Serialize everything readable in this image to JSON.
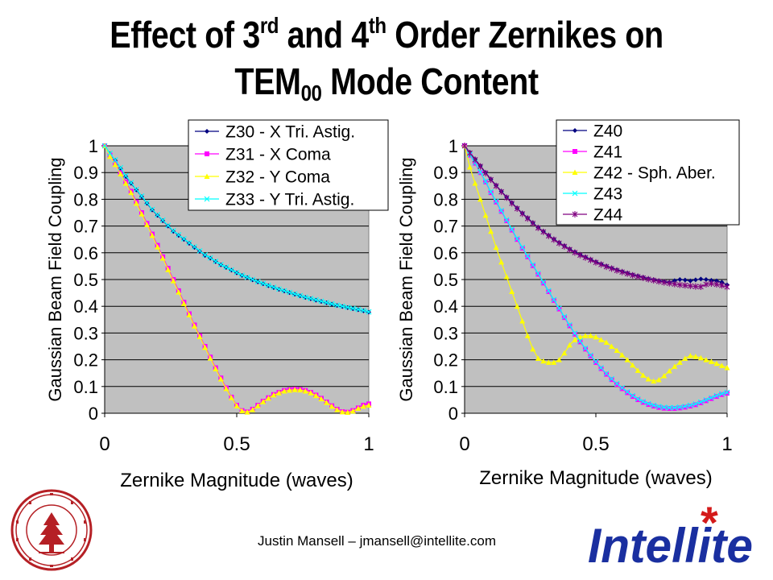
{
  "slide": {
    "title_part1": "Effect of 3",
    "title_sup1": "rd",
    "title_part2": " and 4",
    "title_sup2": "th",
    "title_part3": " Order Zernikes on",
    "title_line2_main": "TEM",
    "title_line2_sub": "00",
    "title_line2_rest": " Mode Content",
    "footer": "Justin Mansell – jmansell@intellite.com",
    "seal_lettering": "LELAND STANFORD JUNIOR UNIVERSITY · ORGANIZED 1891",
    "logo_text": "Intellite",
    "logo_star": "*"
  },
  "colors": {
    "plot_bg": "#c0c0c0",
    "logo_blue": "#1a2fa0",
    "logo_star": "#d41a1a",
    "seal_red": "#b52025"
  },
  "chart_data": [
    {
      "type": "line",
      "xlabel": "Zernike Magnitude (waves)",
      "ylabel": "Gaussian Beam Field Coupling",
      "xlim": [
        0,
        1
      ],
      "ylim": [
        0,
        1
      ],
      "xticks": [
        "0",
        "0.5",
        "1"
      ],
      "yticks": [
        "0",
        "0.1",
        "0.2",
        "0.3",
        "0.4",
        "0.5",
        "0.6",
        "0.7",
        "0.8",
        "0.9",
        "1"
      ],
      "grid": true,
      "legend_position": "top-right",
      "x": [
        0,
        0.02,
        0.04,
        0.06,
        0.08,
        0.1,
        0.12,
        0.14,
        0.16,
        0.18,
        0.2,
        0.22,
        0.24,
        0.26,
        0.28,
        0.3,
        0.32,
        0.34,
        0.36,
        0.38,
        0.4,
        0.42,
        0.44,
        0.46,
        0.48,
        0.5,
        0.52,
        0.54,
        0.56,
        0.58,
        0.6,
        0.62,
        0.64,
        0.66,
        0.68,
        0.7,
        0.72,
        0.74,
        0.76,
        0.78,
        0.8,
        0.82,
        0.84,
        0.86,
        0.88,
        0.9,
        0.92,
        0.94,
        0.96,
        0.98,
        1.0
      ],
      "series": [
        {
          "name": "Z30 - X Tri. Astig.",
          "color": "#000080",
          "marker": "diamond",
          "values": [
            1.0,
            0.97,
            0.945,
            0.915,
            0.885,
            0.86,
            0.835,
            0.81,
            0.785,
            0.76,
            0.74,
            0.72,
            0.7,
            0.68,
            0.665,
            0.65,
            0.635,
            0.62,
            0.605,
            0.59,
            0.58,
            0.567,
            0.555,
            0.545,
            0.535,
            0.525,
            0.515,
            0.507,
            0.499,
            0.491,
            0.484,
            0.477,
            0.47,
            0.463,
            0.457,
            0.451,
            0.445,
            0.439,
            0.433,
            0.428,
            0.423,
            0.418,
            0.413,
            0.408,
            0.403,
            0.399,
            0.395,
            0.391,
            0.387,
            0.383,
            0.378
          ]
        },
        {
          "name": "Z31 - X Coma",
          "color": "#ff00ff",
          "marker": "square",
          "values": [
            1.0,
            0.965,
            0.935,
            0.9,
            0.865,
            0.83,
            0.79,
            0.75,
            0.71,
            0.67,
            0.628,
            0.585,
            0.542,
            0.5,
            0.458,
            0.415,
            0.372,
            0.33,
            0.29,
            0.25,
            0.21,
            0.17,
            0.132,
            0.095,
            0.06,
            0.03,
            0.01,
            0.005,
            0.015,
            0.03,
            0.045,
            0.058,
            0.07,
            0.078,
            0.085,
            0.088,
            0.09,
            0.089,
            0.085,
            0.078,
            0.068,
            0.056,
            0.042,
            0.028,
            0.015,
            0.006,
            0.004,
            0.01,
            0.02,
            0.03,
            0.035
          ]
        },
        {
          "name": "Z32 - Y Coma",
          "color": "#ffff00",
          "marker": "triangle",
          "values": [
            1.0,
            0.96,
            0.93,
            0.895,
            0.86,
            0.825,
            0.785,
            0.745,
            0.705,
            0.665,
            0.622,
            0.58,
            0.537,
            0.495,
            0.453,
            0.41,
            0.368,
            0.326,
            0.286,
            0.246,
            0.206,
            0.166,
            0.128,
            0.092,
            0.058,
            0.028,
            0.009,
            0.004,
            0.013,
            0.028,
            0.043,
            0.056,
            0.068,
            0.076,
            0.083,
            0.086,
            0.088,
            0.087,
            0.083,
            0.076,
            0.066,
            0.054,
            0.04,
            0.026,
            0.013,
            0.005,
            0.003,
            0.008,
            0.018,
            0.026,
            0.03
          ]
        },
        {
          "name": "Z33 - Y Tri. Astig.",
          "color": "#00ffff",
          "marker": "x",
          "values": [
            1.0,
            0.972,
            0.947,
            0.918,
            0.888,
            0.862,
            0.837,
            0.812,
            0.787,
            0.762,
            0.742,
            0.722,
            0.702,
            0.682,
            0.667,
            0.652,
            0.637,
            0.622,
            0.607,
            0.592,
            0.581,
            0.568,
            0.556,
            0.546,
            0.536,
            0.526,
            0.516,
            0.508,
            0.5,
            0.492,
            0.485,
            0.478,
            0.471,
            0.464,
            0.458,
            0.452,
            0.446,
            0.44,
            0.434,
            0.429,
            0.424,
            0.419,
            0.414,
            0.409,
            0.404,
            0.4,
            0.396,
            0.392,
            0.388,
            0.384,
            0.379
          ]
        }
      ]
    },
    {
      "type": "line",
      "xlabel": "Zernike Magnitude (waves)",
      "ylabel": "Gaussian Beam Field Coupling",
      "xlim": [
        0,
        1
      ],
      "ylim": [
        0,
        1
      ],
      "xticks": [
        "0",
        "0.5",
        "1"
      ],
      "yticks": [
        "0",
        "0.1",
        "0.2",
        "0.3",
        "0.4",
        "0.5",
        "0.6",
        "0.7",
        "0.8",
        "0.9",
        "1"
      ],
      "grid": true,
      "legend_position": "top-right",
      "x": [
        0,
        0.02,
        0.04,
        0.06,
        0.08,
        0.1,
        0.12,
        0.14,
        0.16,
        0.18,
        0.2,
        0.22,
        0.24,
        0.26,
        0.28,
        0.3,
        0.32,
        0.34,
        0.36,
        0.38,
        0.4,
        0.42,
        0.44,
        0.46,
        0.48,
        0.5,
        0.52,
        0.54,
        0.56,
        0.58,
        0.6,
        0.62,
        0.64,
        0.66,
        0.68,
        0.7,
        0.72,
        0.74,
        0.76,
        0.78,
        0.8,
        0.82,
        0.84,
        0.86,
        0.88,
        0.9,
        0.92,
        0.94,
        0.96,
        0.98,
        1.0
      ],
      "series": [
        {
          "name": "Z40",
          "color": "#000080",
          "marker": "diamond",
          "values": [
            1.0,
            0.975,
            0.95,
            0.925,
            0.9,
            0.875,
            0.852,
            0.83,
            0.808,
            0.787,
            0.767,
            0.748,
            0.73,
            0.712,
            0.695,
            0.68,
            0.665,
            0.651,
            0.638,
            0.626,
            0.614,
            0.603,
            0.593,
            0.584,
            0.575,
            0.566,
            0.558,
            0.55,
            0.543,
            0.536,
            0.53,
            0.524,
            0.518,
            0.513,
            0.508,
            0.503,
            0.499,
            0.495,
            0.492,
            0.489,
            0.496,
            0.5,
            0.498,
            0.495,
            0.499,
            0.502,
            0.5,
            0.497,
            0.495,
            0.49,
            0.48
          ]
        },
        {
          "name": "Z41",
          "color": "#ff00ff",
          "marker": "square",
          "values": [
            1.0,
            0.965,
            0.935,
            0.9,
            0.865,
            0.825,
            0.79,
            0.755,
            0.72,
            0.685,
            0.65,
            0.617,
            0.585,
            0.552,
            0.52,
            0.487,
            0.455,
            0.422,
            0.39,
            0.358,
            0.327,
            0.296,
            0.267,
            0.24,
            0.214,
            0.19,
            0.167,
            0.146,
            0.126,
            0.108,
            0.092,
            0.077,
            0.063,
            0.051,
            0.041,
            0.033,
            0.027,
            0.022,
            0.019,
            0.018,
            0.018,
            0.02,
            0.023,
            0.027,
            0.032,
            0.039,
            0.047,
            0.055,
            0.063,
            0.07,
            0.075
          ]
        },
        {
          "name": "Z42 - Sph. Aber.",
          "color": "#ffff00",
          "marker": "triangle",
          "values": [
            1.0,
            0.92,
            0.86,
            0.8,
            0.74,
            0.68,
            0.62,
            0.565,
            0.51,
            0.455,
            0.4,
            0.345,
            0.29,
            0.24,
            0.205,
            0.195,
            0.19,
            0.19,
            0.2,
            0.225,
            0.255,
            0.275,
            0.285,
            0.29,
            0.29,
            0.285,
            0.275,
            0.265,
            0.25,
            0.235,
            0.218,
            0.2,
            0.18,
            0.16,
            0.142,
            0.128,
            0.12,
            0.125,
            0.14,
            0.158,
            0.175,
            0.19,
            0.205,
            0.215,
            0.212,
            0.207,
            0.2,
            0.193,
            0.186,
            0.178,
            0.17
          ]
        },
        {
          "name": "Z43",
          "color": "#00ffff",
          "marker": "x",
          "values": [
            1.0,
            0.967,
            0.937,
            0.902,
            0.867,
            0.828,
            0.793,
            0.758,
            0.723,
            0.688,
            0.653,
            0.62,
            0.588,
            0.555,
            0.523,
            0.49,
            0.458,
            0.425,
            0.393,
            0.361,
            0.33,
            0.299,
            0.27,
            0.243,
            0.217,
            0.193,
            0.17,
            0.149,
            0.129,
            0.111,
            0.095,
            0.08,
            0.066,
            0.054,
            0.044,
            0.036,
            0.03,
            0.025,
            0.022,
            0.021,
            0.021,
            0.023,
            0.026,
            0.03,
            0.035,
            0.042,
            0.05,
            0.058,
            0.066,
            0.073,
            0.078
          ]
        },
        {
          "name": "Z44",
          "color": "#800080",
          "marker": "star",
          "values": [
            1.0,
            0.973,
            0.948,
            0.923,
            0.898,
            0.873,
            0.85,
            0.828,
            0.806,
            0.785,
            0.765,
            0.746,
            0.728,
            0.71,
            0.693,
            0.678,
            0.663,
            0.649,
            0.636,
            0.624,
            0.612,
            0.601,
            0.591,
            0.582,
            0.573,
            0.564,
            0.556,
            0.548,
            0.541,
            0.534,
            0.528,
            0.522,
            0.516,
            0.511,
            0.506,
            0.501,
            0.497,
            0.493,
            0.489,
            0.486,
            0.483,
            0.48,
            0.478,
            0.476,
            0.474,
            0.473,
            0.482,
            0.485,
            0.482,
            0.478,
            0.472
          ]
        }
      ]
    }
  ]
}
